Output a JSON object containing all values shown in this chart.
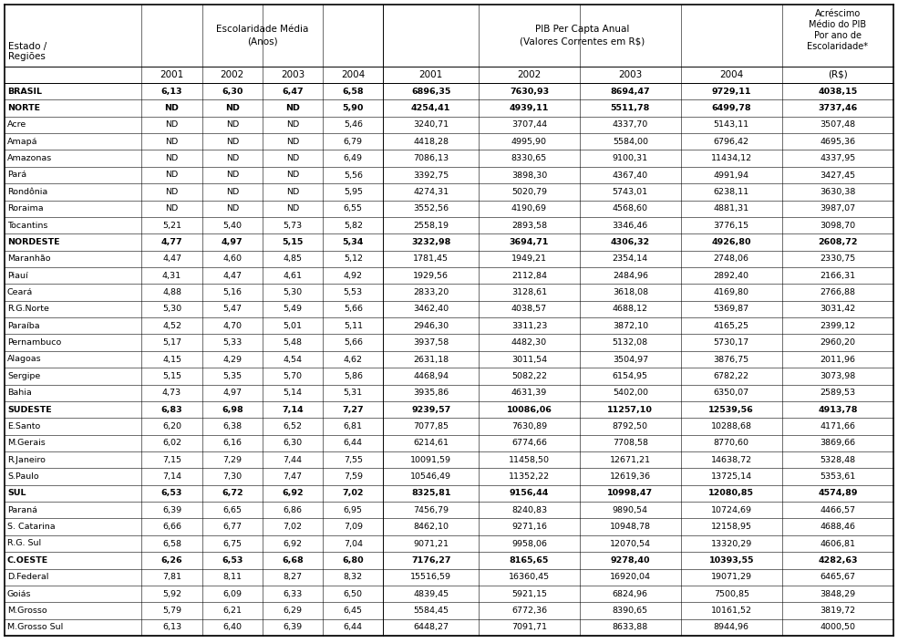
{
  "rows": [
    [
      "BRASIL",
      "6,13",
      "6,30",
      "6,47",
      "6,58",
      "6896,35",
      "7630,93",
      "8694,47",
      "9729,11",
      "4038,15",
      true
    ],
    [
      "NORTE",
      "ND",
      "ND",
      "ND",
      "5,90",
      "4254,41",
      "4939,11",
      "5511,78",
      "6499,78",
      "3737,46",
      true
    ],
    [
      "Acre",
      "ND",
      "ND",
      "ND",
      "5,46",
      "3240,71",
      "3707,44",
      "4337,70",
      "5143,11",
      "3507,48",
      false
    ],
    [
      "Amapá",
      "ND",
      "ND",
      "ND",
      "6,79",
      "4418,28",
      "4995,90",
      "5584,00",
      "6796,42",
      "4695,36",
      false
    ],
    [
      "Amazonas",
      "ND",
      "ND",
      "ND",
      "6,49",
      "7086,13",
      "8330,65",
      "9100,31",
      "11434,12",
      "4337,95",
      false
    ],
    [
      "Pará",
      "ND",
      "ND",
      "ND",
      "5,56",
      "3392,75",
      "3898,30",
      "4367,40",
      "4991,94",
      "3427,45",
      false
    ],
    [
      "Rondônia",
      "ND",
      "ND",
      "ND",
      "5,95",
      "4274,31",
      "5020,79",
      "5743,01",
      "6238,11",
      "3630,38",
      false
    ],
    [
      "Roraima",
      "ND",
      "ND",
      "ND",
      "6,55",
      "3552,56",
      "4190,69",
      "4568,60",
      "4881,31",
      "3987,07",
      false
    ],
    [
      "Tocantins",
      "5,21",
      "5,40",
      "5,73",
      "5,82",
      "2558,19",
      "2893,58",
      "3346,46",
      "3776,15",
      "3098,70",
      false
    ],
    [
      "NORDESTE",
      "4,77",
      "4,97",
      "5,15",
      "5,34",
      "3232,98",
      "3694,71",
      "4306,32",
      "4926,80",
      "2608,72",
      true
    ],
    [
      "Maranhão",
      "4,47",
      "4,60",
      "4,85",
      "5,12",
      "1781,45",
      "1949,21",
      "2354,14",
      "2748,06",
      "2330,75",
      false
    ],
    [
      "Piauí",
      "4,31",
      "4,47",
      "4,61",
      "4,92",
      "1929,56",
      "2112,84",
      "2484,96",
      "2892,40",
      "2166,31",
      false
    ],
    [
      "Ceará",
      "4,88",
      "5,16",
      "5,30",
      "5,53",
      "2833,20",
      "3128,61",
      "3618,08",
      "4169,80",
      "2766,88",
      false
    ],
    [
      "R.G.Norte",
      "5,30",
      "5,47",
      "5,49",
      "5,66",
      "3462,40",
      "4038,57",
      "4688,12",
      "5369,87",
      "3031,42",
      false
    ],
    [
      "Paraíba",
      "4,52",
      "4,70",
      "5,01",
      "5,11",
      "2946,30",
      "3311,23",
      "3872,10",
      "4165,25",
      "2399,12",
      false
    ],
    [
      "Pernambuco",
      "5,17",
      "5,33",
      "5,48",
      "5,66",
      "3937,58",
      "4482,30",
      "5132,08",
      "5730,17",
      "2960,20",
      false
    ],
    [
      "Alagoas",
      "4,15",
      "4,29",
      "4,54",
      "4,62",
      "2631,18",
      "3011,54",
      "3504,97",
      "3876,75",
      "2011,96",
      false
    ],
    [
      "Sergipe",
      "5,15",
      "5,35",
      "5,70",
      "5,86",
      "4468,94",
      "5082,22",
      "6154,95",
      "6782,22",
      "3073,98",
      false
    ],
    [
      "Bahia",
      "4,73",
      "4,97",
      "5,14",
      "5,31",
      "3935,86",
      "4631,39",
      "5402,00",
      "6350,07",
      "2589,53",
      false
    ],
    [
      "SUDESTE",
      "6,83",
      "6,98",
      "7,14",
      "7,27",
      "9239,57",
      "10086,06",
      "11257,10",
      "12539,56",
      "4913,78",
      true
    ],
    [
      "E.Santo",
      "6,20",
      "6,38",
      "6,52",
      "6,81",
      "7077,85",
      "7630,89",
      "8792,50",
      "10288,68",
      "4171,66",
      false
    ],
    [
      "M.Gerais",
      "6,02",
      "6,16",
      "6,30",
      "6,44",
      "6214,61",
      "6774,66",
      "7708,58",
      "8770,60",
      "3869,66",
      false
    ],
    [
      "R.Janeiro",
      "7,15",
      "7,29",
      "7,44",
      "7,55",
      "10091,59",
      "11458,50",
      "12671,21",
      "14638,72",
      "5328,48",
      false
    ],
    [
      "S.Paulo",
      "7,14",
      "7,30",
      "7,47",
      "7,59",
      "10546,49",
      "11352,22",
      "12619,36",
      "13725,14",
      "5353,61",
      false
    ],
    [
      "SUL",
      "6,53",
      "6,72",
      "6,92",
      "7,02",
      "8325,81",
      "9156,44",
      "10998,47",
      "12080,85",
      "4574,89",
      true
    ],
    [
      "Paraná",
      "6,39",
      "6,65",
      "6,86",
      "6,95",
      "7456,79",
      "8240,83",
      "9890,54",
      "10724,69",
      "4466,57",
      false
    ],
    [
      "S. Catarina",
      "6,66",
      "6,77",
      "7,02",
      "7,09",
      "8462,10",
      "9271,16",
      "10948,78",
      "12158,95",
      "4688,46",
      false
    ],
    [
      "R.G. Sul",
      "6,58",
      "6,75",
      "6,92",
      "7,04",
      "9071,21",
      "9958,06",
      "12070,54",
      "13320,29",
      "4606,81",
      false
    ],
    [
      "C.OESTE",
      "6,26",
      "6,53",
      "6,68",
      "6,80",
      "7176,27",
      "8165,65",
      "9278,40",
      "10393,55",
      "4282,63",
      true
    ],
    [
      "D.Federal",
      "7,81",
      "8,11",
      "8,27",
      "8,32",
      "15516,59",
      "16360,45",
      "16920,04",
      "19071,29",
      "6465,67",
      false
    ],
    [
      "Goiás",
      "5,92",
      "6,09",
      "6,33",
      "6,50",
      "4839,45",
      "5921,15",
      "6824,96",
      "7500,85",
      "3848,29",
      false
    ],
    [
      "M.Grosso",
      "5,79",
      "6,21",
      "6,29",
      "6,45",
      "5584,45",
      "6772,36",
      "8390,65",
      "10161,52",
      "3819,72",
      false
    ],
    [
      "M.Grosso Sul",
      "6,13",
      "6,40",
      "6,39",
      "6,44",
      "6448,27",
      "7091,71",
      "8633,88",
      "8944,96",
      "4000,50",
      false
    ]
  ]
}
